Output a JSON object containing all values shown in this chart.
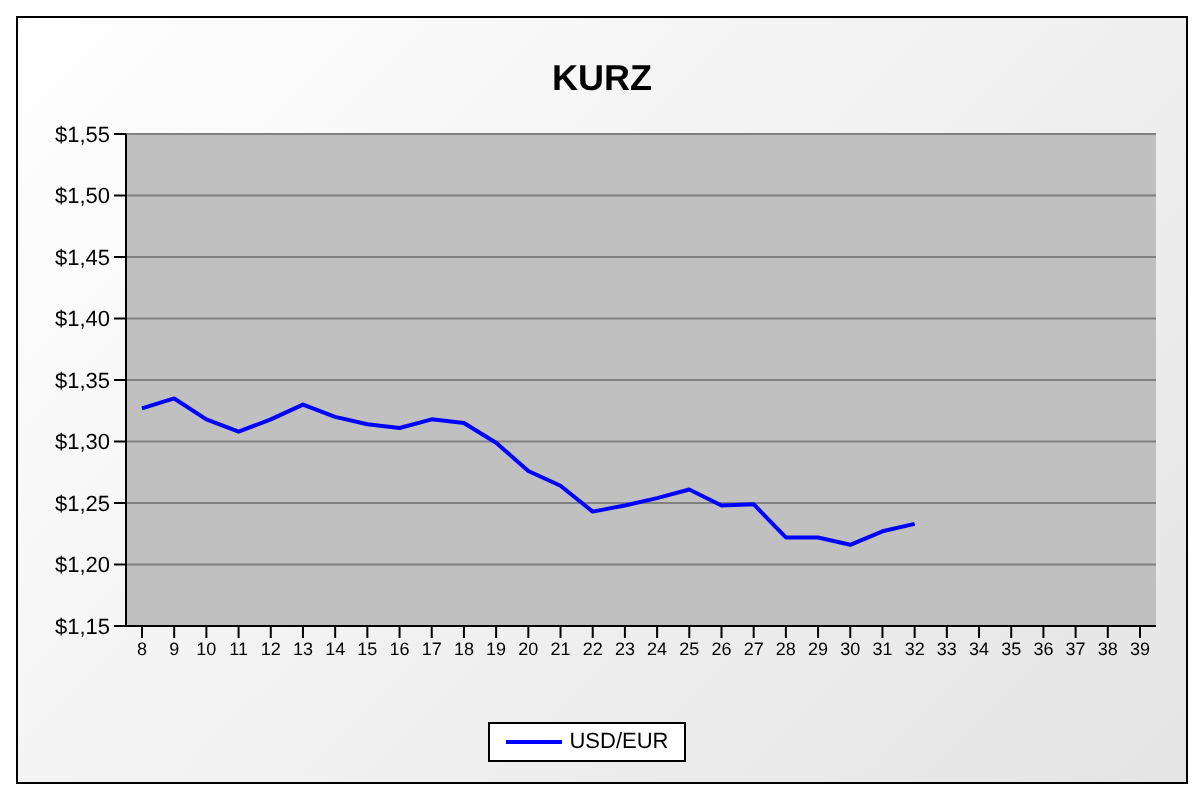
{
  "chart_data": {
    "type": "line",
    "title": "KURZ",
    "categories": [
      "8",
      "9",
      "10",
      "11",
      "12",
      "13",
      "14",
      "15",
      "16",
      "17",
      "18",
      "19",
      "20",
      "21",
      "22",
      "23",
      "24",
      "25",
      "26",
      "27",
      "28",
      "29",
      "30",
      "31",
      "32",
      "33",
      "34",
      "35",
      "36",
      "37",
      "38",
      "39"
    ],
    "series": [
      {
        "name": "USD/EUR",
        "color": "#0000ff",
        "values": [
          1.327,
          1.335,
          1.318,
          1.308,
          1.318,
          1.33,
          1.32,
          1.314,
          1.311,
          1.318,
          1.315,
          1.299,
          1.276,
          1.264,
          1.243,
          1.248,
          1.254,
          1.261,
          1.248,
          1.249,
          1.222,
          1.222,
          1.216,
          1.227,
          1.233,
          null,
          null,
          null,
          null,
          null,
          null,
          null
        ]
      }
    ],
    "ylim": [
      1.15,
      1.55
    ],
    "yticks": [
      {
        "value": 1.15,
        "label": "$1,15"
      },
      {
        "value": 1.2,
        "label": "$1,20"
      },
      {
        "value": 1.25,
        "label": "$1,25"
      },
      {
        "value": 1.3,
        "label": "$1,30"
      },
      {
        "value": 1.35,
        "label": "$1,35"
      },
      {
        "value": 1.4,
        "label": "$1,40"
      },
      {
        "value": 1.45,
        "label": "$1,45"
      },
      {
        "value": 1.5,
        "label": "$1,50"
      },
      {
        "value": 1.55,
        "label": "$1,55"
      }
    ],
    "grid": "y",
    "legend": "bottom",
    "marker": "none",
    "line_style": "solid"
  }
}
